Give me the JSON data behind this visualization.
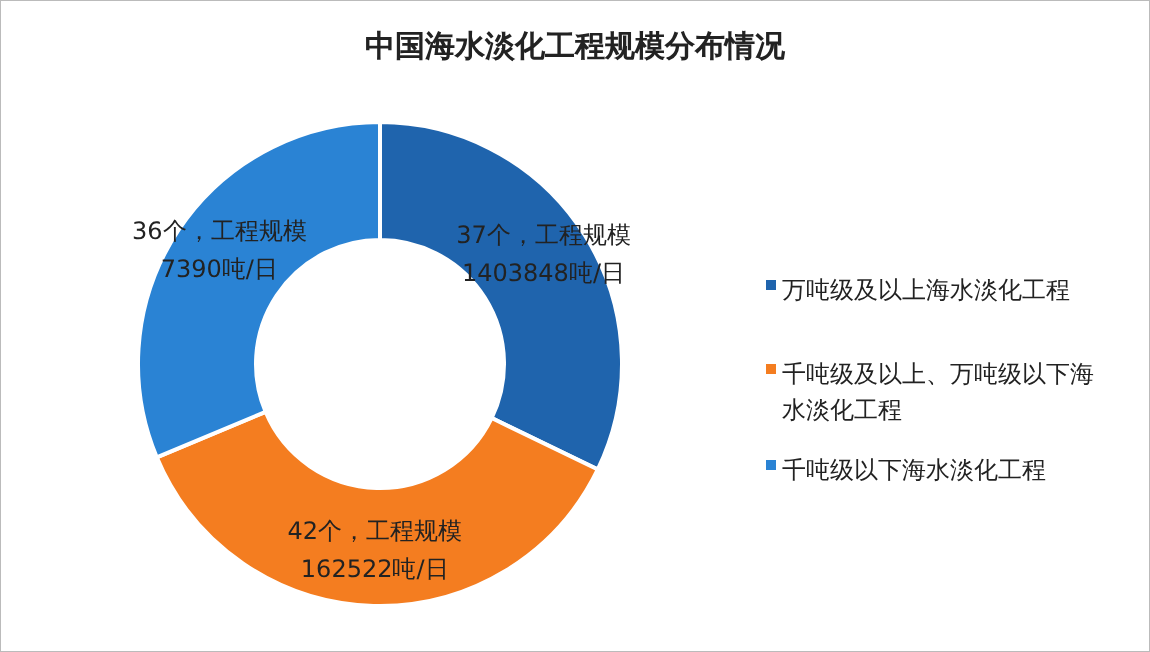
{
  "chart_data": {
    "type": "donut",
    "title": "中国海水淡化工程规模分布情况",
    "categories": [
      "万吨级及以上海水淡化工程",
      "千吨级及以上、万吨级以下海水淡化工程",
      "千吨级以下海水淡化工程"
    ],
    "values": [
      37,
      42,
      36
    ],
    "colors": [
      "#1f64ad",
      "#f47d20",
      "#2a83d4"
    ],
    "value_labels": [
      "37个，工程规模\n1403848吨/日",
      "42个，工程规模\n162522吨/日",
      "36个，工程规模\n7390吨/日"
    ],
    "legend": "right"
  }
}
